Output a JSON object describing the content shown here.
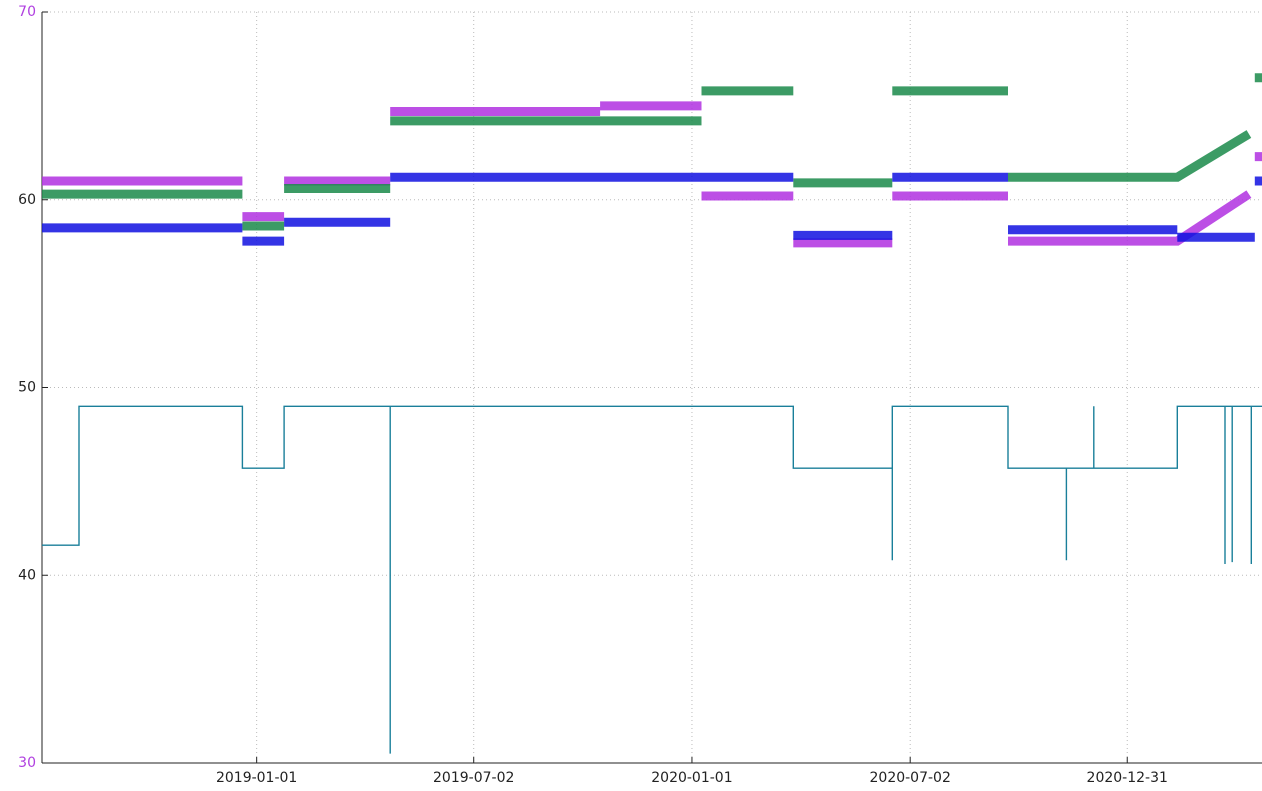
{
  "chart_data": {
    "type": "line",
    "xlim": [
      "2018-07-05",
      "2021-04-23"
    ],
    "xticks": [
      "2019-01-01",
      "2019-07-02",
      "2020-01-01",
      "2020-07-02",
      "2020-12-31"
    ],
    "ylim": [
      30,
      70
    ],
    "yticks": [
      30,
      40,
      50,
      60,
      70
    ],
    "grid": true,
    "series": [
      {
        "color": "#b030e0",
        "style": "dots",
        "x": [
          "2018-07-05",
          "2018-12-20",
          "2018-12-20",
          "2018-12-20",
          "2019-01-24",
          "2019-01-24",
          "2019-01-24",
          "2019-04-23",
          "2019-04-23",
          "2019-04-23",
          "2019-10-16",
          "2019-10-16",
          "2019-10-16",
          "2020-01-09",
          "2020-01-09",
          "2020-01-09",
          "2020-03-26",
          "2020-03-26",
          "2020-03-26",
          "2020-06-17",
          "2020-06-17",
          "2020-06-17",
          "2020-09-22",
          "2020-09-22",
          "2020-09-22",
          "2021-02-11",
          "2021-04-12",
          "2021-04-12",
          "2021-04-17",
          "2021-04-23"
        ],
        "values": [
          61,
          61,
          null,
          59.1,
          59.1,
          null,
          61,
          61,
          null,
          64.7,
          64.7,
          null,
          65,
          65,
          null,
          60.2,
          60.2,
          null,
          57.7,
          57.7,
          null,
          60.2,
          60.2,
          null,
          57.8,
          57.8,
          60.3,
          null,
          62.3,
          62.3
        ]
      },
      {
        "color": "#1a8a4a",
        "style": "dots",
        "x": [
          "2018-07-05",
          "2018-12-20",
          "2018-12-20",
          "2018-12-20",
          "2019-01-24",
          "2019-01-24",
          "2019-01-24",
          "2019-04-23",
          "2019-04-23",
          "2019-04-23",
          "2020-01-09",
          "2020-01-09",
          "2020-01-09",
          "2020-03-26",
          "2020-03-26",
          "2020-03-26",
          "2020-06-17",
          "2020-06-17",
          "2020-06-17",
          "2020-09-22",
          "2020-09-22",
          "2020-09-22",
          "2021-02-11",
          "2021-04-12",
          "2021-04-12",
          "2021-04-17",
          "2021-04-23"
        ],
        "values": [
          60.3,
          60.3,
          null,
          58.6,
          58.6,
          null,
          60.6,
          60.6,
          null,
          64.2,
          64.2,
          null,
          65.8,
          65.8,
          null,
          60.9,
          60.9,
          null,
          65.8,
          65.8,
          null,
          61.2,
          61.2,
          63.5,
          null,
          66.5,
          66.5
        ]
      },
      {
        "color": "#1010e0",
        "style": "dots",
        "x": [
          "2018-07-05",
          "2018-12-20",
          "2018-12-20",
          "2018-12-20",
          "2019-01-24",
          "2019-01-24",
          "2019-01-24",
          "2019-04-23",
          "2019-04-23",
          "2019-04-23",
          "2020-03-26",
          "2020-03-26",
          "2020-03-26",
          "2020-06-17",
          "2020-06-17",
          "2020-06-17",
          "2020-09-22",
          "2020-09-22",
          "2020-09-22",
          "2021-02-11",
          "2021-02-11",
          "2021-02-11",
          "2021-04-17",
          "2021-04-17",
          "2021-04-17",
          "2021-04-23"
        ],
        "values": [
          58.5,
          58.5,
          null,
          57.8,
          57.8,
          null,
          58.8,
          58.8,
          null,
          61.2,
          61.2,
          null,
          58.1,
          58.1,
          null,
          61.2,
          61.2,
          null,
          58.4,
          58.4,
          null,
          58,
          58,
          null,
          61,
          61
        ]
      },
      {
        "color": "#1a7f9a",
        "style": "line",
        "x": [
          "2018-07-05",
          "2018-08-05",
          "2018-08-05",
          "2018-12-20",
          "2018-12-20",
          "2019-01-24",
          "2019-01-24",
          "2019-04-23",
          "2019-04-23",
          "2019-04-23",
          "2020-03-26",
          "2020-03-26",
          "2020-06-17",
          "2020-06-17",
          "2020-06-17",
          "2020-09-22",
          "2020-09-22",
          "2020-11-10",
          "2020-11-10",
          "2020-11-10",
          "2020-12-03",
          "2020-12-03",
          "2020-12-03",
          "2021-02-11",
          "2021-02-11",
          "2021-03-23",
          "2021-03-23",
          "2021-03-23",
          "2021-03-29",
          "2021-03-29",
          "2021-03-29",
          "2021-04-14",
          "2021-04-14",
          "2021-04-14",
          "2021-04-23"
        ],
        "values": [
          41.6,
          41.6,
          49,
          49,
          45.7,
          45.7,
          49,
          49,
          30.5,
          49,
          49,
          45.7,
          45.7,
          40.8,
          49,
          49,
          45.7,
          45.7,
          40.8,
          45.7,
          45.7,
          49,
          45.7,
          45.7,
          49,
          49,
          40.6,
          49,
          49,
          40.7,
          49,
          49,
          40.6,
          49,
          49
        ]
      }
    ]
  }
}
